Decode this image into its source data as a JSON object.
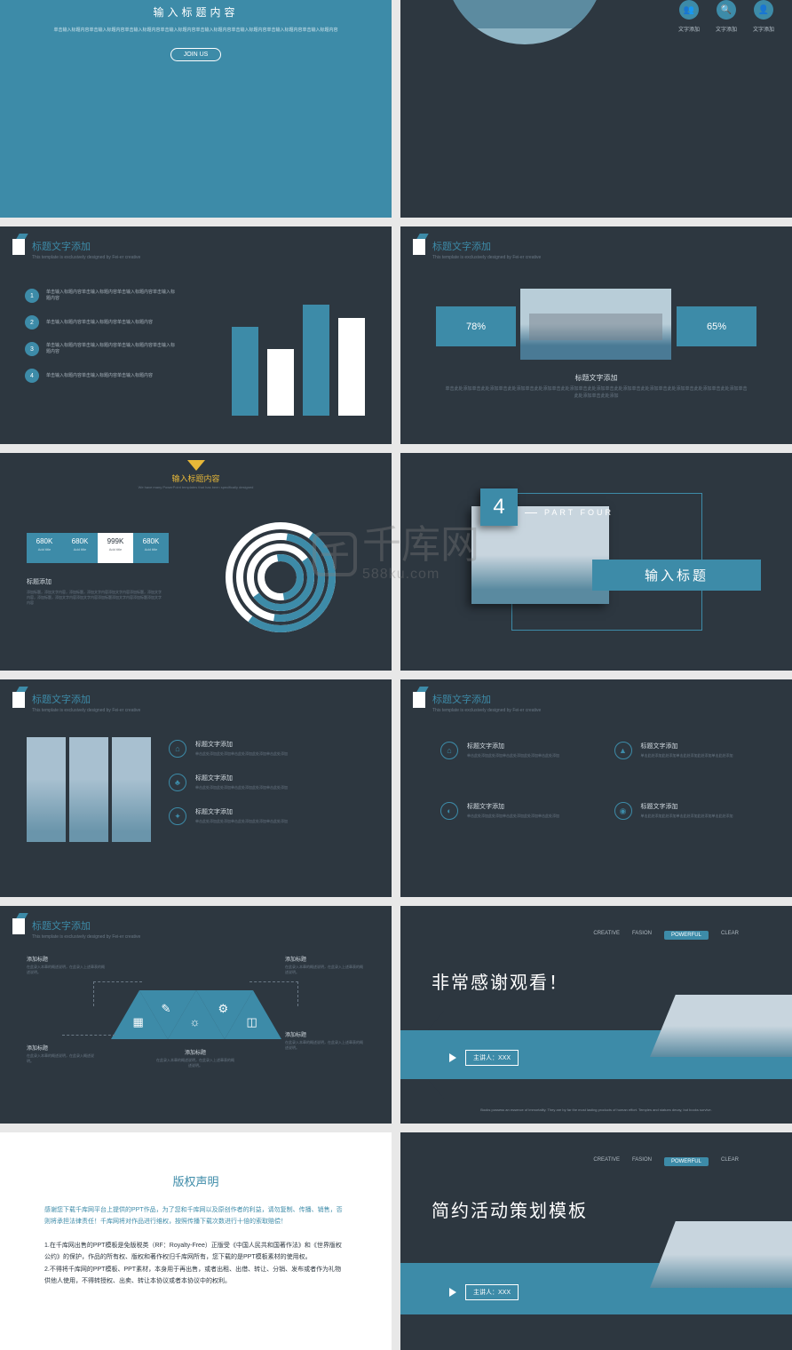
{
  "colors": {
    "bg": "#2d3740",
    "accent": "#3d8ba8",
    "white": "#ffffff",
    "yellow": "#e8b838",
    "text_light": "#d5dde3",
    "text_muted": "#6a7885"
  },
  "slide_header": {
    "title": "标题文字添加",
    "sub": "This template is exclusively designed by Fei-er creative"
  },
  "s1": {
    "title": "输入标题内容",
    "desc": "单击输入标题内容单击输入标题内容单击输入标题内容单击输入标题内容单击输入标题内容单击输入标题内容单击输入标题内容单击输入标题内容",
    "button": "JOIN US"
  },
  "s2": {
    "icons": [
      {
        "glyph": "👥",
        "label": "文字添加"
      },
      {
        "glyph": "🔍",
        "label": "文字添加"
      },
      {
        "glyph": "👤",
        "label": "文字添加"
      }
    ]
  },
  "s3": {
    "list": [
      {
        "n": "1",
        "text": "单击输入标题内容单击输入标题内容单击输入标题内容单击输入标题内容"
      },
      {
        "n": "2",
        "text": "单击输入标题内容单击输入标题内容单击输入标题内容"
      },
      {
        "n": "3",
        "text": "单击输入标题内容单击输入标题内容单击输入标题内容单击输入标题内容"
      },
      {
        "n": "4",
        "text": "单击输入标题内容单击输入标题内容单击输入标题内容"
      }
    ],
    "bars": {
      "values": [
        100,
        75,
        125,
        110
      ],
      "colors": [
        "#3d8ba8",
        "#ffffff",
        "#3d8ba8",
        "#ffffff"
      ],
      "width": 30,
      "gap": 10
    }
  },
  "s4": {
    "left_pct": "78%",
    "right_pct": "65%",
    "mid_title": "标题文字添加",
    "mid_desc": "单击此处添加单击此处添加单击此处添加单击此处添加单击此处添加单击此处添加单击此处添加单击此处添加单击此处添加单击此处添加单击此处添加单击此处添加单击此处添加"
  },
  "s5": {
    "title": "输入标题内容",
    "sub": "We have many PowerPoint templates that has been specifically designed",
    "stats": [
      {
        "v": "680K",
        "l": "Add title"
      },
      {
        "v": "680K",
        "l": "Add title"
      },
      {
        "v": "999K",
        "l": "Add title",
        "highlight": true
      },
      {
        "v": "680K",
        "l": "Add title"
      }
    ],
    "bottom": {
      "h": "标题添加",
      "d": "添加标题，添加文字内容，添加标题，添加文字内容添加文字内容添加标题，添加文字内容，添加标题，添加文字内容添加文字内容添加标题添加文字内容添加标题添加文字内容"
    },
    "donut": {
      "rings": [
        {
          "r": 62,
          "w": 8,
          "color": "#3d8ba8",
          "pct": 70
        },
        {
          "r": 50,
          "w": 8,
          "color": "#3d8ba8",
          "pct": 55
        },
        {
          "r": 38,
          "w": 8,
          "color": "#3d8ba8",
          "pct": 80
        },
        {
          "r": 26,
          "w": 8,
          "color": "#3d8ba8",
          "pct": 45
        }
      ],
      "base": "#ffffff"
    }
  },
  "s6": {
    "num": "4",
    "part": "PART FOUR",
    "title": "输入标题"
  },
  "s7": {
    "items": [
      {
        "icon": "⌂",
        "h": "标题文字添加",
        "d": "单击此处添加此处添加单击此处添加此处添加单击此处添加"
      },
      {
        "icon": "♣",
        "h": "标题文字添加",
        "d": "单击此处添加此处添加单击此处添加此处添加单击此处添加"
      },
      {
        "icon": "✦",
        "h": "标题文字添加",
        "d": "单击此处添加此处添加单击此处添加此处添加单击此处添加"
      }
    ]
  },
  "s8": {
    "items": [
      {
        "icon": "⌂",
        "h": "标题文字添加",
        "d": "单击此处添加此处添加单击此处添加此处添加单击此处添加"
      },
      {
        "icon": "▲",
        "h": "标题文字添加",
        "d": "单击此处添加此处添加单击此处添加此处添加单击此处添加"
      },
      {
        "icon": "◐",
        "h": "标题文字添加",
        "d": "单击此处添加此处添加单击此处添加此处添加单击此处添加"
      },
      {
        "icon": "◉",
        "h": "标题文字添加",
        "d": "单击此处添加此处添加单击此处添加此处添加单击此处添加"
      }
    ]
  },
  "s9": {
    "triangles": [
      {
        "dir": "up",
        "icon": "▦"
      },
      {
        "dir": "down",
        "icon": "✎"
      },
      {
        "dir": "up",
        "icon": "☼"
      },
      {
        "dir": "down",
        "icon": "⚙"
      },
      {
        "dir": "up",
        "icon": "◫"
      }
    ],
    "labels": {
      "tl": {
        "h": "添加标题",
        "d": "在此录入本章的概述说明，在此录入上述章表的概述说明。"
      },
      "tr": {
        "h": "添加标题",
        "d": "在此录入本章的概述说明，在此录入上述章表的概述说明。"
      },
      "bl": {
        "h": "添加标题",
        "d": "在此录入本章的概述说明，在此录入概述说明。"
      },
      "br": {
        "h": "添加标题",
        "d": "在此录入本章的概述说明，在此录入上述章表的概述说明。"
      },
      "bc": {
        "h": "添加标题",
        "d": "在此录入本章的概述说明，在此录入上述章表的概述说明。"
      }
    }
  },
  "s10": {
    "tags": [
      "CREATIVE",
      "FASION",
      "POWERFUL",
      "CLEAR"
    ],
    "active": 2,
    "thanks": "非常感谢观看！",
    "presenter_label": "主讲人：XXX",
    "quote": "Books possess an essence of immortality. They are by far the most lasting products of human effort. Temples and statues decay, but books survive."
  },
  "s11": {
    "title": "版权声明",
    "p1": "感谢您下载千库网平台上提供的PPT作品，为了您和千库网以及原创作者的利益，请勿复制、传播、销售，否则将承担法律责任！千库网将对作品进行维权，按照传播下载次数进行十倍的索取赔偿！",
    "p2": "1.在千库网出售的PPT模板是免版税类（RF：Royalty-Free）正版受《中国人民共和国著作法》和《世界版权公约》的保护，作品的所有权、版权和著作权归千库网所有，您下载的是PPT模板素材的使用权。\n2.不得将千库网的PPT模板、PPT素材，本身用于再出售，或者出租、出借、转让、分销、发布或者作为礼物供他人使用，不得转授权、出卖、转让本协议或者本协议中的权利。"
  },
  "s12": {
    "tags": [
      "CREATIVE",
      "FASION",
      "POWERFUL",
      "CLEAR"
    ],
    "active": 2,
    "title": "简约活动策划模板",
    "presenter_label": "主讲人：XXX"
  },
  "watermark": {
    "logo": "千",
    "text": "千库网",
    "url": "588ku.com"
  }
}
